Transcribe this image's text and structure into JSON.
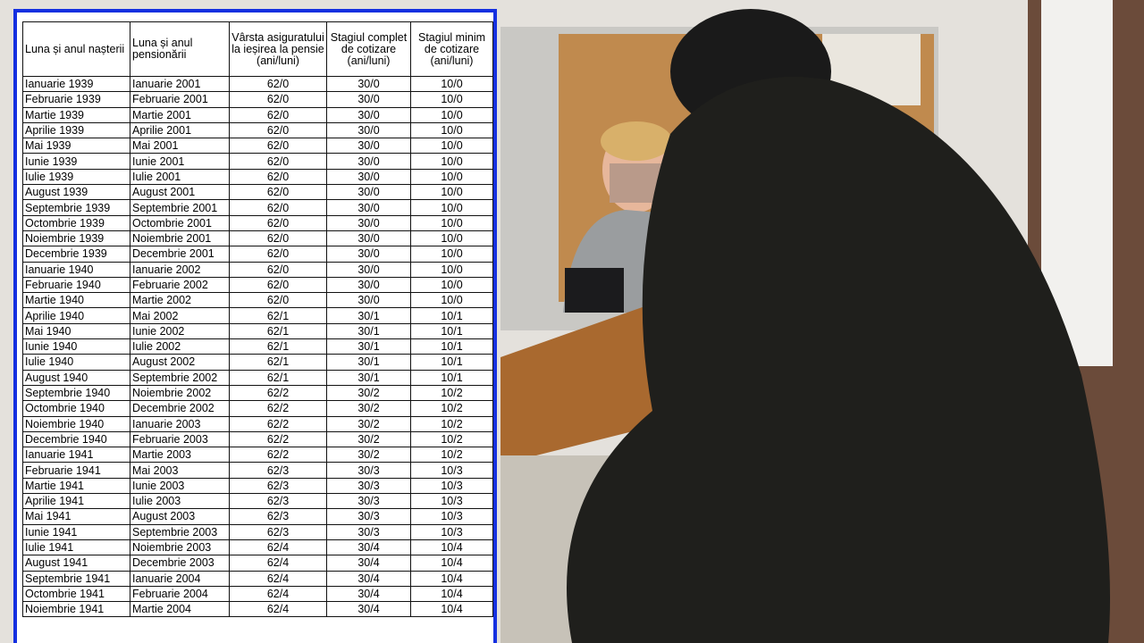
{
  "table": {
    "header": [
      "Luna și anul nașterii",
      "Luna și anul pensionării",
      "Vârsta asiguratului la ieșirea la pensie (ani/luni)",
      "Stagiul complet de cotizare (ani/luni)",
      "Stagiul minim de cotizare (ani/luni)"
    ],
    "rows": [
      [
        "Ianuarie 1939",
        "Ianuarie 2001",
        "62/0",
        "30/0",
        "10/0"
      ],
      [
        "Februarie 1939",
        "Februarie 2001",
        "62/0",
        "30/0",
        "10/0"
      ],
      [
        "Martie 1939",
        "Martie 2001",
        "62/0",
        "30/0",
        "10/0"
      ],
      [
        "Aprilie 1939",
        "Aprilie 2001",
        "62/0",
        "30/0",
        "10/0"
      ],
      [
        "Mai 1939",
        "Mai 2001",
        "62/0",
        "30/0",
        "10/0"
      ],
      [
        "Iunie 1939",
        "Iunie 2001",
        "62/0",
        "30/0",
        "10/0"
      ],
      [
        "Iulie 1939",
        "Iulie 2001",
        "62/0",
        "30/0",
        "10/0"
      ],
      [
        "August 1939",
        "August 2001",
        "62/0",
        "30/0",
        "10/0"
      ],
      [
        "Septembrie 1939",
        "Septembrie 2001",
        "62/0",
        "30/0",
        "10/0"
      ],
      [
        "Octombrie 1939",
        "Octombrie 2001",
        "62/0",
        "30/0",
        "10/0"
      ],
      [
        "Noiembrie 1939",
        "Noiembrie 2001",
        "62/0",
        "30/0",
        "10/0"
      ],
      [
        "Decembrie 1939",
        "Decembrie 2001",
        "62/0",
        "30/0",
        "10/0"
      ],
      [
        "Ianuarie 1940",
        "Ianuarie 2002",
        "62/0",
        "30/0",
        "10/0"
      ],
      [
        "Februarie 1940",
        "Februarie 2002",
        "62/0",
        "30/0",
        "10/0"
      ],
      [
        "Martie 1940",
        "Martie 2002",
        "62/0",
        "30/0",
        "10/0"
      ],
      [
        "Aprilie 1940",
        "Mai 2002",
        "62/1",
        "30/1",
        "10/1"
      ],
      [
        "Mai 1940",
        "Iunie 2002",
        "62/1",
        "30/1",
        "10/1"
      ],
      [
        "Iunie 1940",
        "Iulie 2002",
        "62/1",
        "30/1",
        "10/1"
      ],
      [
        "Iulie 1940",
        "August 2002",
        "62/1",
        "30/1",
        "10/1"
      ],
      [
        "August 1940",
        "Septembrie 2002",
        "62/1",
        "30/1",
        "10/1"
      ],
      [
        "Septembrie 1940",
        "Noiembrie 2002",
        "62/2",
        "30/2",
        "10/2"
      ],
      [
        "Octombrie 1940",
        "Decembrie 2002",
        "62/2",
        "30/2",
        "10/2"
      ],
      [
        "Noiembrie 1940",
        "Ianuarie 2003",
        "62/2",
        "30/2",
        "10/2"
      ],
      [
        "Decembrie 1940",
        "Februarie 2003",
        "62/2",
        "30/2",
        "10/2"
      ],
      [
        "Ianuarie 1941",
        "Martie 2003",
        "62/2",
        "30/2",
        "10/2"
      ],
      [
        "Februarie 1941",
        "Mai 2003",
        "62/3",
        "30/3",
        "10/3"
      ],
      [
        "Martie 1941",
        "Iunie 2003",
        "62/3",
        "30/3",
        "10/3"
      ],
      [
        "Aprilie 1941",
        "Iulie 2003",
        "62/3",
        "30/3",
        "10/3"
      ],
      [
        "Mai 1941",
        "August 2003",
        "62/3",
        "30/3",
        "10/3"
      ],
      [
        "Iunie 1941",
        "Septembrie 2003",
        "62/3",
        "30/3",
        "10/3"
      ],
      [
        "Iulie 1941",
        "Noiembrie 2003",
        "62/4",
        "30/4",
        "10/4"
      ],
      [
        "August 1941",
        "Decembrie 2003",
        "62/4",
        "30/4",
        "10/4"
      ],
      [
        "Septembrie 1941",
        "Ianuarie 2004",
        "62/4",
        "30/4",
        "10/4"
      ],
      [
        "Octombrie 1941",
        "Februarie 2004",
        "62/4",
        "30/4",
        "10/4"
      ],
      [
        "Noiembrie 1941",
        "Martie 2004",
        "62/4",
        "30/4",
        "10/4"
      ]
    ]
  }
}
